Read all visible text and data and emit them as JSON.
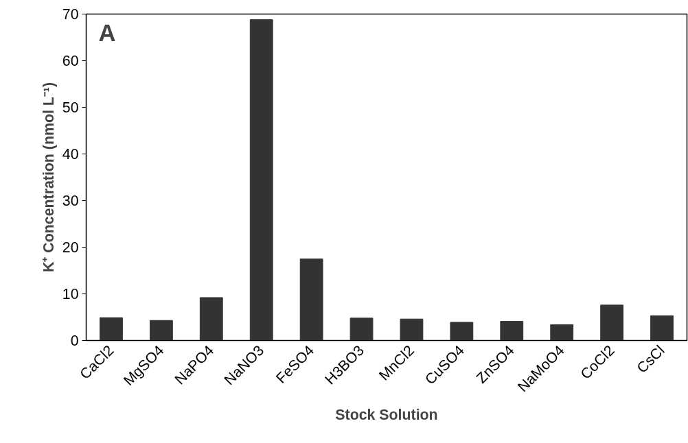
{
  "chart_data": {
    "type": "bar",
    "xlabel": "Stock Solution",
    "ylabel": "K⁺ Concentration (nmol L⁻¹)",
    "categories": [
      "CaCl2",
      "MgSO4",
      "NaPO4",
      "NaNO3",
      "FeSO4",
      "H3BO3",
      "MnCl2",
      "CuSO4",
      "ZnSO4",
      "NaMoO4",
      "CoCl2",
      "CsCl"
    ],
    "values": [
      4.9,
      4.3,
      9.2,
      68.8,
      17.5,
      4.8,
      4.6,
      3.9,
      4.1,
      3.4,
      7.6,
      5.3
    ],
    "color": "#333333",
    "ylim": [
      0,
      70
    ],
    "yticks": [
      0,
      10,
      20,
      30,
      40,
      50,
      60,
      70
    ],
    "grid": false,
    "annotations": [
      "A"
    ]
  }
}
